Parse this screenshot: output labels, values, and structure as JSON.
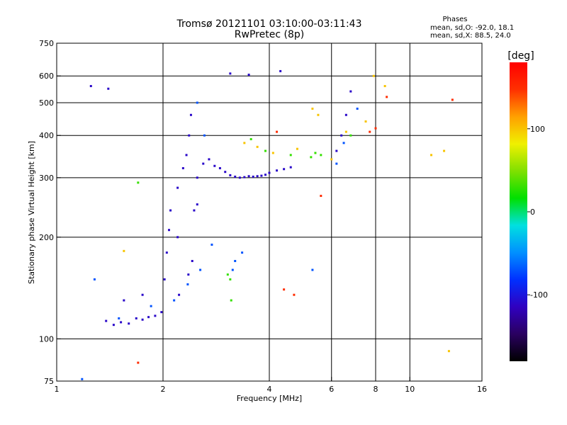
{
  "chart_data": {
    "type": "scatter",
    "title": "Tromsø 20121101 03:10:00-03:11:43",
    "subtitle": "RwPretec (8p)",
    "stats": {
      "heading": "Phases",
      "line_o": "mean, sd,O: -92.0, 18.1",
      "line_x": "mean, sd,X:  88.5, 24.0"
    },
    "xlabel": "Frequency [MHz]",
    "ylabel": "Stationary phase Virtual Height [km]",
    "x_scale": "log",
    "y_scale": "log",
    "xlim": [
      1,
      16
    ],
    "ylim": [
      75,
      750
    ],
    "x_ticks": [
      {
        "value": 1,
        "label": "1"
      },
      {
        "value": 2,
        "label": "2"
      },
      {
        "value": 4,
        "label": "4"
      },
      {
        "value": 6,
        "label": "6"
      },
      {
        "value": 8,
        "label": "8"
      },
      {
        "value": 10,
        "label": "10"
      },
      {
        "value": 16,
        "label": "16"
      }
    ],
    "x_gridlines": [
      2,
      4,
      6,
      8,
      10
    ],
    "y_ticks": [
      {
        "value": 75,
        "label": "75"
      },
      {
        "value": 100,
        "label": "100"
      },
      {
        "value": 200,
        "label": "200"
      },
      {
        "value": 300,
        "label": "300"
      },
      {
        "value": 400,
        "label": "400"
      },
      {
        "value": 500,
        "label": "500"
      },
      {
        "value": 600,
        "label": "600"
      },
      {
        "value": 750,
        "label": "750"
      }
    ],
    "y_gridlines": [
      100,
      200,
      300,
      400,
      500,
      600
    ],
    "grid": true,
    "colorbar": {
      "label": "[deg]",
      "range": [
        -180,
        180
      ],
      "ticks": [
        {
          "value": 100,
          "label": "100"
        },
        {
          "value": 0,
          "label": "0"
        },
        {
          "value": -100,
          "label": "-100"
        }
      ],
      "colors": [
        "#000000",
        "#2a0060",
        "#3000c0",
        "#0030ff",
        "#0090ff",
        "#00e0e0",
        "#00e000",
        "#80e000",
        "#f0f000",
        "#ffa000",
        "#ff3000",
        "#ff0000"
      ]
    },
    "series": [
      {
        "phase": -110,
        "points": [
          [
            1.38,
            113
          ],
          [
            1.45,
            110
          ],
          [
            1.52,
            112
          ],
          [
            1.6,
            111
          ],
          [
            1.68,
            115
          ],
          [
            1.75,
            114
          ],
          [
            1.82,
            116
          ],
          [
            1.9,
            117
          ],
          [
            1.98,
            120
          ],
          [
            2.02,
            150
          ],
          [
            2.05,
            180
          ],
          [
            2.08,
            210
          ],
          [
            2.1,
            240
          ],
          [
            2.2,
            280
          ],
          [
            2.28,
            320
          ],
          [
            2.33,
            350
          ],
          [
            2.37,
            400
          ],
          [
            2.4,
            460
          ],
          [
            2.36,
            155
          ],
          [
            2.42,
            170
          ],
          [
            2.5,
            300
          ],
          [
            2.6,
            330
          ],
          [
            2.7,
            340
          ],
          [
            2.8,
            325
          ],
          [
            2.9,
            320
          ],
          [
            3.0,
            312
          ],
          [
            3.1,
            305
          ],
          [
            3.2,
            302
          ],
          [
            3.3,
            300
          ],
          [
            3.4,
            301
          ],
          [
            3.5,
            303
          ],
          [
            3.6,
            302
          ],
          [
            3.7,
            303
          ],
          [
            3.8,
            304
          ],
          [
            3.9,
            306
          ],
          [
            4.0,
            310
          ],
          [
            4.2,
            315
          ],
          [
            4.4,
            318
          ],
          [
            4.6,
            322
          ],
          [
            6.2,
            360
          ],
          [
            6.4,
            400
          ],
          [
            6.6,
            460
          ],
          [
            6.8,
            540
          ],
          [
            2.45,
            240
          ],
          [
            2.5,
            250
          ],
          [
            2.2,
            200
          ],
          [
            1.25,
            560
          ],
          [
            1.4,
            550
          ],
          [
            3.1,
            610
          ],
          [
            3.5,
            605
          ],
          [
            4.3,
            620
          ],
          [
            2.22,
            135
          ],
          [
            1.75,
            135
          ],
          [
            1.55,
            130
          ]
        ]
      },
      {
        "phase": -70,
        "points": [
          [
            1.5,
            115
          ],
          [
            1.85,
            125
          ],
          [
            2.15,
            130
          ],
          [
            2.35,
            145
          ],
          [
            2.55,
            160
          ],
          [
            2.75,
            190
          ],
          [
            3.15,
            160
          ],
          [
            3.2,
            170
          ],
          [
            3.35,
            180
          ],
          [
            2.5,
            500
          ],
          [
            2.62,
            400
          ],
          [
            5.3,
            160
          ],
          [
            6.5,
            380
          ],
          [
            7.1,
            480
          ],
          [
            6.2,
            330
          ],
          [
            1.28,
            150
          ],
          [
            1.18,
            76
          ]
        ]
      },
      {
        "phase": 30,
        "points": [
          [
            3.05,
            155
          ],
          [
            3.1,
            150
          ],
          [
            3.12,
            130
          ],
          [
            3.55,
            390
          ],
          [
            3.9,
            360
          ],
          [
            4.6,
            350
          ],
          [
            5.25,
            345
          ],
          [
            1.7,
            290
          ],
          [
            5.4,
            355
          ],
          [
            5.6,
            350
          ],
          [
            6.8,
            400
          ]
        ]
      },
      {
        "phase": 100,
        "points": [
          [
            3.4,
            380
          ],
          [
            3.7,
            370
          ],
          [
            4.1,
            355
          ],
          [
            4.8,
            365
          ],
          [
            5.3,
            480
          ],
          [
            5.5,
            460
          ],
          [
            6.0,
            340
          ],
          [
            6.6,
            410
          ],
          [
            7.5,
            440
          ],
          [
            7.9,
            600
          ],
          [
            8.5,
            560
          ],
          [
            1.55,
            182
          ],
          [
            11.5,
            350
          ],
          [
            12.5,
            360
          ],
          [
            12.9,
            92
          ]
        ]
      },
      {
        "phase": 150,
        "points": [
          [
            4.4,
            140
          ],
          [
            4.7,
            135
          ],
          [
            7.7,
            410
          ],
          [
            8.0,
            420
          ],
          [
            8.6,
            520
          ],
          [
            13.2,
            510
          ],
          [
            1.7,
            85
          ],
          [
            5.6,
            265
          ],
          [
            4.2,
            410
          ]
        ]
      }
    ]
  }
}
